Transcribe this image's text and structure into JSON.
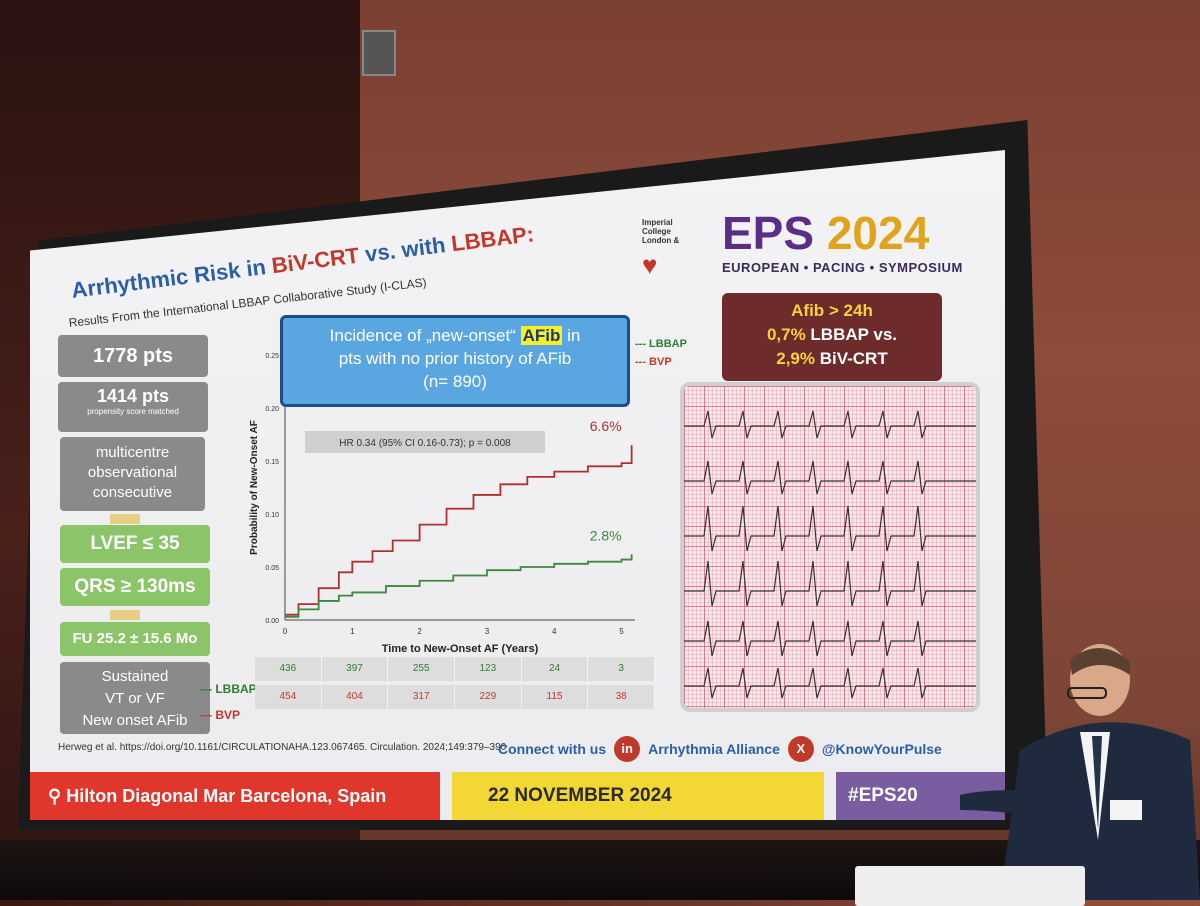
{
  "slide": {
    "title_a": "Arrhythmic Risk",
    "title_b": " in ",
    "title_c": "BiV-CRT",
    "title_d": " vs. with ",
    "title_e": "LBBAP:",
    "subtitle": "Results From the International LBBAP Collaborative Study (I-CLAS)"
  },
  "logo": {
    "institution": "Imperial College London &",
    "eps": "EPS",
    "year": "2024",
    "tagline": "EUROPEAN • PACING • SYMPOSIUM"
  },
  "left_column": {
    "pts": "1778 pts",
    "matched": "1414 pts",
    "matched_note": "propensity score matched",
    "study_1": "multicentre",
    "study_2": "observational",
    "study_3": "consecutive",
    "lvef": "LVEF ≤ 35",
    "qrs": "QRS ≥ 130ms",
    "fu": "FU 25.2 ± 15.6 Mo",
    "outcome_1": "Sustained",
    "outcome_2": "VT or VF",
    "outcome_3": "New onset AFib"
  },
  "incidence": {
    "line1_a": "Incidence of „new-onset“ ",
    "line1_hl": "AFib",
    "line1_b": " in",
    "line2": "pts with no prior history of AFib",
    "line3": "(n= 890)"
  },
  "legend": {
    "lbbap": "--- LBBAP",
    "bvp": "--- BVP"
  },
  "chart_data": {
    "type": "line",
    "title": "",
    "xlabel": "Time to New-Onset AF (Years)",
    "ylabel": "Probability of New-Onset AF",
    "xlim": [
      0,
      5.2
    ],
    "ylim": [
      0,
      0.25
    ],
    "x_ticks": [
      "0",
      "1",
      "2",
      "3",
      "4",
      "5"
    ],
    "y_ticks": [
      "0.00",
      "0.05",
      "0.10",
      "0.15",
      "0.20",
      "0.25"
    ],
    "annotation": "HR 0.34 (95% CI 0.16-0.73); p = 0.008",
    "series": [
      {
        "name": "BVP",
        "color": "#b03030",
        "label": "6.6%",
        "x": [
          0,
          0.2,
          0.5,
          0.8,
          1.0,
          1.3,
          1.6,
          2.0,
          2.4,
          2.8,
          3.2,
          3.6,
          4.0,
          4.5,
          5.0,
          5.1,
          5.15
        ],
        "y": [
          0.005,
          0.015,
          0.03,
          0.045,
          0.055,
          0.065,
          0.075,
          0.09,
          0.105,
          0.118,
          0.128,
          0.135,
          0.14,
          0.145,
          0.148,
          0.148,
          0.165
        ]
      },
      {
        "name": "LBBAP",
        "color": "#3a8a3a",
        "label": "2.8%",
        "x": [
          0,
          0.2,
          0.5,
          0.8,
          1.0,
          1.5,
          2.0,
          2.5,
          3.0,
          3.5,
          4.0,
          4.5,
          5.0,
          5.1,
          5.15
        ],
        "y": [
          0.003,
          0.01,
          0.018,
          0.023,
          0.026,
          0.032,
          0.037,
          0.042,
          0.047,
          0.05,
          0.053,
          0.055,
          0.057,
          0.057,
          0.062
        ]
      }
    ]
  },
  "risk_table": {
    "lbbap_label": "--- LBBAP",
    "bvp_label": "--- BVP",
    "lbbap": [
      "436",
      "397",
      "255",
      "123",
      "24",
      "3"
    ],
    "bvp": [
      "454",
      "404",
      "317",
      "229",
      "115",
      "38"
    ]
  },
  "afib_box": {
    "line1": "Afib > 24h",
    "line2_a": "0,7%",
    "line2_b": " LBBAP vs.",
    "line3_a": "2,9%",
    "line3_b": " BiV-CRT"
  },
  "footer": {
    "citation": "Herweg et al. https://doi.org/10.1161/CIRCULATIONAHA.123.067465. Circulation. 2024;149:379–390",
    "connect": "Connect with us",
    "alliance": "Arrhythmia Alliance",
    "handle": "@KnowYourPulse",
    "location": "Hilton Diagonal Mar Barcelona, Spain",
    "date": "22 NOVEMBER 2024",
    "hashtag": "#EPS20"
  }
}
